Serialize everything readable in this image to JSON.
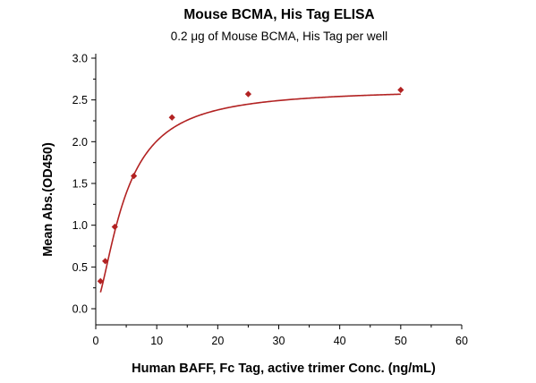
{
  "chart_data": {
    "type": "scatter",
    "title": "Mouse BCMA, His Tag ELISA",
    "subtitle": "0.2 μg of Mouse BCMA, His Tag per well",
    "xlabel": "Human BAFF, Fc Tag, active trimer Conc. (ng/mL)",
    "ylabel": "Mean Abs.(OD450)",
    "xlim": [
      0,
      60
    ],
    "ylim": [
      0,
      3.0
    ],
    "xticks": [
      "0",
      "10",
      "20",
      "30",
      "40",
      "50",
      "60"
    ],
    "yticks": [
      "0.0",
      "0.5",
      "1.0",
      "1.5",
      "2.0",
      "2.5",
      "3.0"
    ],
    "grid": false,
    "series": [
      {
        "color": "#b22222",
        "marker": "diamond",
        "fit": "4-parameter logistic curve",
        "x": [
          0.78,
          1.56,
          3.125,
          6.25,
          12.5,
          25,
          50
        ],
        "y": [
          0.33,
          0.57,
          0.98,
          1.59,
          2.29,
          2.57,
          2.62
        ]
      }
    ]
  }
}
